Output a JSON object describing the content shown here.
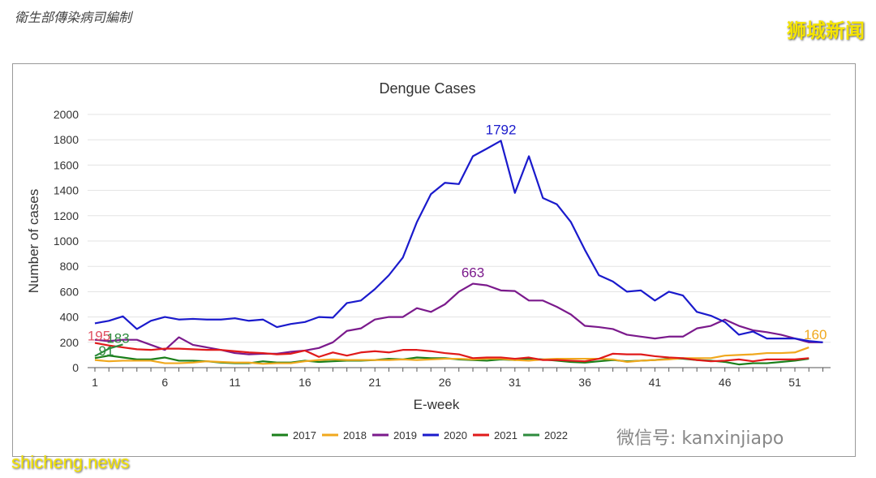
{
  "header": {
    "source": "衛生部傳染病司編制",
    "brand": "狮城新闻"
  },
  "footer": {
    "site": "shicheng.news",
    "wechat": "微信号: kanxinjiapo"
  },
  "chart_data": {
    "type": "line",
    "title": "Dengue Cases",
    "xlabel": "E-week",
    "ylabel": "Number of cases",
    "ylim": [
      0,
      2000
    ],
    "yticks": [
      0,
      200,
      400,
      600,
      800,
      1000,
      1200,
      1400,
      1600,
      1800,
      2000
    ],
    "xlim": [
      1,
      53
    ],
    "xticks": [
      1,
      6,
      11,
      16,
      21,
      26,
      31,
      36,
      41,
      46,
      51
    ],
    "grid": true,
    "legend": "bottom",
    "series": [
      {
        "name": "2017",
        "color": "#1a7f1a",
        "values": [
          75,
          95,
          80,
          65,
          65,
          80,
          55,
          55,
          50,
          40,
          35,
          35,
          50,
          40,
          40,
          55,
          45,
          50,
          55,
          55,
          60,
          70,
          65,
          80,
          75,
          75,
          65,
          60,
          55,
          65,
          60,
          70,
          65,
          55,
          45,
          40,
          50,
          60,
          50,
          55,
          60,
          70,
          70,
          60,
          55,
          45,
          25,
          35,
          35,
          45,
          55,
          70
        ]
      },
      {
        "name": "2018",
        "color": "#f0a81e",
        "values": [
          60,
          50,
          55,
          55,
          55,
          35,
          35,
          40,
          50,
          45,
          40,
          40,
          30,
          35,
          35,
          50,
          60,
          65,
          60,
          60,
          60,
          60,
          65,
          60,
          65,
          70,
          70,
          65,
          70,
          70,
          60,
          55,
          65,
          70,
          70,
          70,
          70,
          65,
          45,
          55,
          60,
          65,
          75,
          75,
          75,
          95,
          100,
          105,
          115,
          115,
          120,
          160
        ]
      },
      {
        "name": "2019",
        "color": "#7b1a8c",
        "values": [
          220,
          210,
          220,
          220,
          180,
          140,
          240,
          180,
          160,
          140,
          115,
          105,
          110,
          110,
          125,
          135,
          155,
          200,
          290,
          310,
          380,
          400,
          400,
          470,
          440,
          500,
          600,
          663,
          650,
          610,
          605,
          530,
          530,
          480,
          420,
          330,
          320,
          305,
          260,
          245,
          230,
          245,
          245,
          310,
          330,
          380,
          330,
          295,
          280,
          260,
          230,
          200,
          200
        ]
      },
      {
        "name": "2020",
        "color": "#1a1acc",
        "values": [
          350,
          370,
          405,
          305,
          370,
          400,
          380,
          385,
          380,
          380,
          390,
          370,
          380,
          320,
          345,
          360,
          400,
          395,
          510,
          530,
          620,
          730,
          870,
          1150,
          1370,
          1460,
          1450,
          1670,
          1730,
          1792,
          1380,
          1670,
          1340,
          1290,
          1150,
          930,
          730,
          680,
          600,
          610,
          530,
          600,
          570,
          440,
          410,
          360,
          260,
          285,
          230,
          230,
          230,
          210,
          200
        ]
      },
      {
        "name": "2021",
        "color": "#e01a1a",
        "values": [
          195,
          175,
          160,
          145,
          140,
          150,
          150,
          145,
          140,
          140,
          130,
          120,
          115,
          105,
          110,
          135,
          85,
          120,
          95,
          120,
          130,
          120,
          140,
          140,
          130,
          115,
          105,
          75,
          80,
          80,
          70,
          80,
          60,
          60,
          55,
          50,
          70,
          110,
          105,
          105,
          90,
          80,
          75,
          60,
          50,
          55,
          65,
          50,
          65,
          65,
          65,
          75
        ]
      },
      {
        "name": "2022",
        "color": "#2e8b3e",
        "values": [
          91,
          150,
          183
        ]
      }
    ],
    "annotations": [
      {
        "series": "2020",
        "week": 30,
        "text": "1792"
      },
      {
        "series": "2019",
        "week": 28,
        "text": "663"
      },
      {
        "series": "2021",
        "week": 1,
        "text": "195"
      },
      {
        "series": "2022",
        "week": 1,
        "text": "91"
      },
      {
        "series": "2022",
        "week": 3,
        "text": "183"
      },
      {
        "series": "2018",
        "week": 52,
        "text": "160"
      }
    ]
  }
}
